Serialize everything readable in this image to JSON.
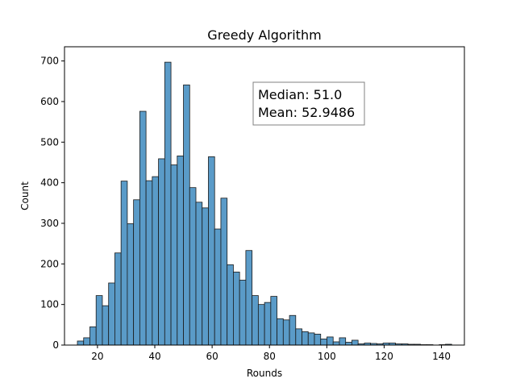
{
  "chart_data": {
    "type": "bar",
    "title": "Greedy Algorithm",
    "xlabel": "Rounds",
    "ylabel": "Count",
    "xlim": [
      8.5,
      148
    ],
    "ylim": [
      0,
      735
    ],
    "xticks": [
      20,
      40,
      60,
      80,
      100,
      120,
      140
    ],
    "yticks": [
      0,
      100,
      200,
      300,
      400,
      500,
      600,
      700
    ],
    "bin_width": 2.176,
    "bins_start": [
      13.0,
      15.176,
      17.352,
      19.528,
      21.704,
      23.88,
      26.056,
      28.232,
      30.408,
      32.584,
      34.76,
      36.936,
      39.112,
      41.288,
      43.464,
      45.64,
      47.816,
      49.992,
      52.168,
      54.344,
      56.52,
      58.696,
      60.872,
      63.048,
      65.224,
      67.4,
      69.576,
      71.752,
      73.928,
      76.104,
      78.28,
      80.456,
      82.632,
      84.808,
      86.984,
      89.16,
      91.336,
      93.512,
      95.688,
      97.864,
      100.04,
      102.216,
      104.392,
      106.568,
      108.744,
      110.92,
      113.096,
      115.272,
      117.448,
      119.624,
      121.8,
      123.976,
      126.152,
      128.328,
      130.504,
      132.68,
      134.856,
      137.032,
      139.208,
      141.384
    ],
    "counts": [
      10,
      18,
      45,
      122,
      97,
      153,
      227,
      404,
      299,
      358,
      576,
      405,
      415,
      459,
      697,
      444,
      466,
      641,
      388,
      352,
      338,
      464,
      286,
      362,
      198,
      180,
      160,
      233,
      122,
      100,
      105,
      120,
      65,
      62,
      73,
      40,
      33,
      30,
      27,
      15,
      20,
      8,
      18,
      7,
      12,
      3,
      5,
      4,
      3,
      5,
      5,
      3,
      3,
      2,
      2,
      1,
      1,
      0,
      1,
      2
    ]
  },
  "stats_box": {
    "median": "Median: 51.0",
    "mean": "Mean: 52.9486"
  }
}
